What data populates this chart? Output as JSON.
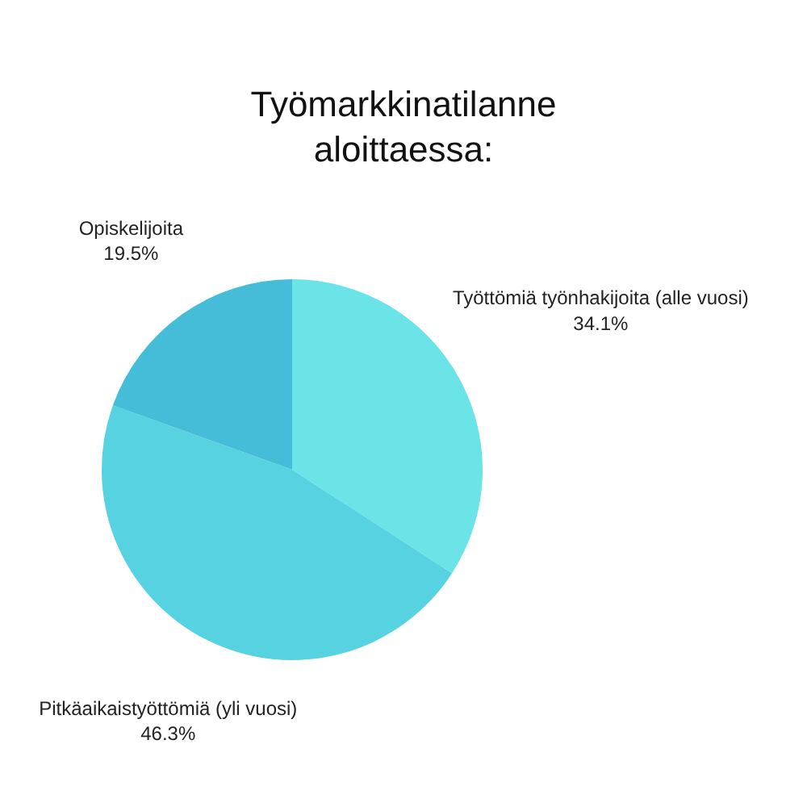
{
  "chart_data": {
    "type": "pie",
    "title": "Työmarkkinatilanne aloittaessa:",
    "categories": [
      "Työttömiä työnhakijoita (alle vuosi)",
      "Pitkäaikaistyöttömiä (yli vuosi)",
      "Opiskelijoita"
    ],
    "values": [
      34.1,
      46.3,
      19.5
    ],
    "value_labels": [
      "34.1%",
      "46.3%",
      "19.5%"
    ],
    "colors": [
      "#6ae4e6",
      "#57d2e0",
      "#45bcd8"
    ]
  }
}
